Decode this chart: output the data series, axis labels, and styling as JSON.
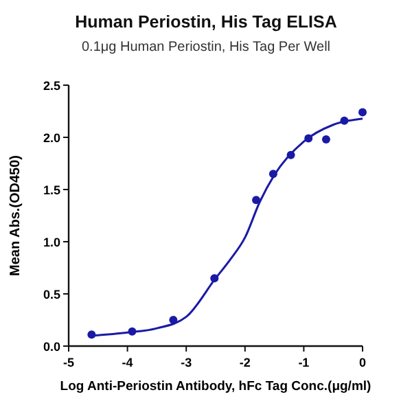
{
  "chart_data": {
    "type": "scatter",
    "title": "Human Periostin, His Tag ELISA",
    "subtitle": "0.1μg Human Periostin, His Tag Per Well",
    "xlabel": "Log Anti-Periostin Antibody, hFc Tag Conc.(μg/ml)",
    "ylabel": "Mean Abs.(OD450)",
    "xlim": [
      -5,
      0
    ],
    "ylim": [
      0,
      2.5
    ],
    "xticks": [
      -5,
      -4,
      -3,
      -2,
      -1,
      0
    ],
    "yticks": [
      {
        "value": 0,
        "label": "0.0"
      },
      {
        "value": 0.5,
        "label": "0.5"
      },
      {
        "value": 1,
        "label": "1.0"
      },
      {
        "value": 1.5,
        "label": "1.5"
      },
      {
        "value": 2,
        "label": "2.0"
      },
      {
        "value": 2.5,
        "label": "2.5"
      }
    ],
    "grid": false,
    "series": [
      {
        "marker": "circle",
        "color": "#1a1aa6",
        "x": [
          -4.61,
          -3.92,
          -3.22,
          -2.52,
          -1.81,
          -1.52,
          -1.22,
          -0.92,
          -0.62,
          -0.31,
          0
        ],
        "values": [
          0.11,
          0.14,
          0.25,
          0.65,
          1.4,
          1.65,
          1.83,
          1.99,
          1.98,
          2.16,
          2.24
        ]
      },
      {
        "type": "line",
        "color": "#1a1aa6",
        "x": [
          -4.6,
          -4,
          -3.5,
          -3,
          -2.5,
          -2.25,
          -2,
          -1.75,
          -1.5,
          -1,
          -0.5,
          0
        ],
        "values": [
          0.1,
          0.13,
          0.17,
          0.28,
          0.65,
          0.83,
          1.04,
          1.38,
          1.64,
          1.96,
          2.12,
          2.18
        ]
      }
    ]
  }
}
